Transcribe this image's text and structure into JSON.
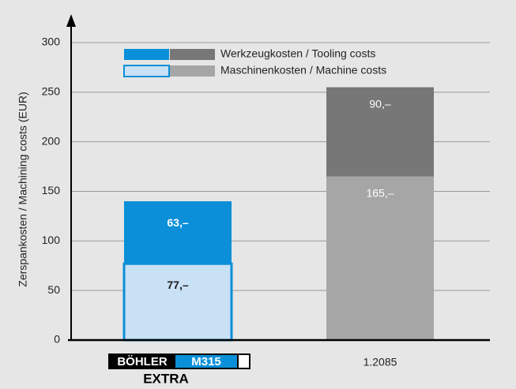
{
  "chart_data": {
    "type": "stacked_bar",
    "y_label": "Zerspankosten / Machining costs (EUR)",
    "categories": [
      null,
      "1.2085"
    ],
    "logo": {
      "brand": "BÖHLER",
      "grade": "M315",
      "suffix": "EXTRA"
    },
    "series": [
      {
        "name": "Maschinenkosten / Machine costs",
        "colors": [
          "#c9e1f5",
          "#a6a6a6"
        ],
        "values": [
          77,
          165
        ],
        "value_labels": [
          "77,–",
          "165,–"
        ]
      },
      {
        "name": "Werkzeugkosten / Tooling costs",
        "colors": [
          "#0a8fd8",
          "#777777"
        ],
        "values": [
          63,
          90
        ],
        "value_labels": [
          "63,–",
          "90,–"
        ]
      }
    ],
    "ylim": [
      0,
      300
    ],
    "yticks": [
      0,
      50,
      100,
      150,
      200,
      250,
      300
    ],
    "grid": true
  }
}
